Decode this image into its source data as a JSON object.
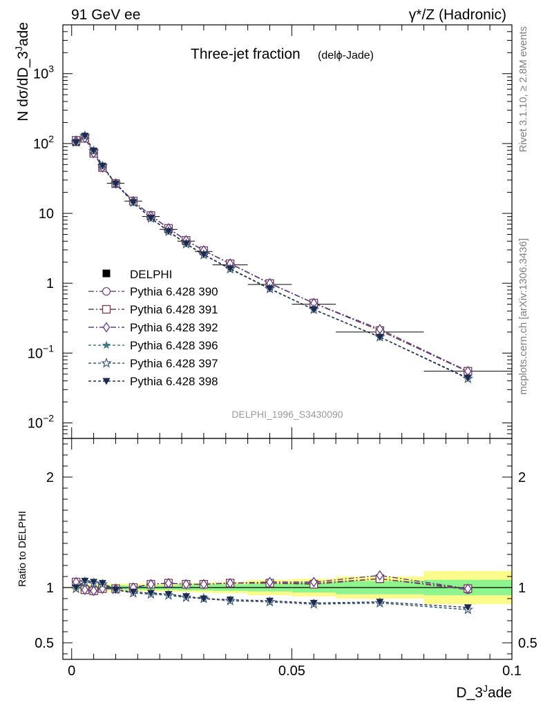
{
  "header": {
    "left": "91 GeV ee",
    "right": "γ*/Z (Hadronic)"
  },
  "side_labels": {
    "rivet": "Rivet 3.1.10, ≥ 2.8M events",
    "mcplots": "mcplots.cern.ch [arXiv:1306.3436]"
  },
  "chart_data": {
    "type": "line",
    "title_main": "Three-jet fraction",
    "title_sub": "(delϕ-Jade)",
    "watermark": "DELPHI_1996_S3430090",
    "xlabel": "D_3^Jade",
    "ylabel": "N dσ/dD_3^Jade",
    "ratio_ylabel": "Ratio to DELPHI",
    "xlim": [
      -0.002,
      0.1
    ],
    "ylim_main": [
      0.006,
      5000
    ],
    "ylog_main": true,
    "ylim_ratio": [
      0.35,
      2.35
    ],
    "x_ticks": [
      {
        "value": 0,
        "label": "0"
      },
      {
        "value": 0.05,
        "label": "0.05"
      },
      {
        "value": 0.1,
        "label": "0.1"
      }
    ],
    "main_y_ticks": [
      {
        "value": 1000,
        "base": "10",
        "exp": "3"
      },
      {
        "value": 100,
        "base": "10",
        "exp": "2"
      },
      {
        "value": 10,
        "base": "10",
        "exp": ""
      },
      {
        "value": 1,
        "base": "1",
        "exp": ""
      },
      {
        "value": 0.1,
        "base": "10",
        "exp": "−1"
      },
      {
        "value": 0.01,
        "base": "10",
        "exp": "−2"
      }
    ],
    "ratio_y_ticks": [
      {
        "value": 2,
        "label": "2"
      },
      {
        "value": 1,
        "label": "1"
      },
      {
        "value": 0.5,
        "label": "0.5"
      }
    ],
    "x": [
      0.001,
      0.003,
      0.005,
      0.007,
      0.01,
      0.014,
      0.018,
      0.022,
      0.026,
      0.03,
      0.036,
      0.045,
      0.055,
      0.07,
      0.09
    ],
    "x_edges": [
      0,
      0.002,
      0.004,
      0.006,
      0.008,
      0.012,
      0.016,
      0.02,
      0.024,
      0.028,
      0.032,
      0.04,
      0.05,
      0.06,
      0.08,
      0.1
    ],
    "data": {
      "name": "DELPHI",
      "values": [
        105,
        122,
        75,
        46,
        27,
        15,
        9,
        5.9,
        4.0,
        2.85,
        1.83,
        0.96,
        0.5,
        0.2,
        0.055
      ]
    },
    "band_inner": [
      0.015,
      0.015,
      0.015,
      0.02,
      0.02,
      0.02,
      0.02,
      0.02,
      0.025,
      0.025,
      0.03,
      0.035,
      0.045,
      0.06,
      0.07,
      0.1
    ],
    "band_outer": [
      0.03,
      0.03,
      0.03,
      0.035,
      0.035,
      0.035,
      0.035,
      0.035,
      0.04,
      0.045,
      0.05,
      0.07,
      0.08,
      0.1,
      0.15,
      0.16
    ],
    "series": [
      {
        "name": "Pythia 6.428 390",
        "color": "#7a4a7a",
        "marker": "circle-open",
        "dash": "8,3,2,3",
        "values": [
          110,
          120,
          73,
          45.5,
          26.8,
          15.0,
          9.3,
          6.1,
          4.12,
          2.94,
          1.9,
          1.0,
          0.52,
          0.21,
          0.054
        ],
        "ratio": [
          1.05,
          0.98,
          0.97,
          0.99,
          0.99,
          1.0,
          1.03,
          1.04,
          1.03,
          1.03,
          1.04,
          1.04,
          1.04,
          1.08,
          0.98
        ]
      },
      {
        "name": "Pythia 6.428 391",
        "color": "#7a3b4a",
        "marker": "square-open",
        "dash": "8,3,2,3",
        "values": [
          111,
          119,
          72.5,
          45.3,
          26.7,
          15.0,
          9.3,
          6.1,
          4.1,
          2.93,
          1.9,
          0.99,
          0.52,
          0.21,
          0.055
        ],
        "ratio": [
          1.05,
          0.98,
          0.97,
          0.99,
          0.99,
          1.0,
          1.03,
          1.04,
          1.03,
          1.03,
          1.04,
          1.04,
          1.03,
          1.08,
          0.99
        ]
      },
      {
        "name": "Pythia 6.428 392",
        "color": "#5a3a8a",
        "marker": "diamond-open",
        "dash": "8,3,2,3",
        "values": [
          110,
          120,
          73,
          45.5,
          26.8,
          15.0,
          9.3,
          6.12,
          4.13,
          2.95,
          1.91,
          1.0,
          0.52,
          0.22,
          0.055
        ],
        "ratio": [
          1.05,
          0.98,
          0.97,
          0.99,
          0.99,
          1.0,
          1.03,
          1.04,
          1.03,
          1.03,
          1.04,
          1.05,
          1.05,
          1.11,
          0.99
        ]
      },
      {
        "name": "Pythia 6.428 396",
        "color": "#3d7a8a",
        "marker": "star-filled",
        "dash": "4,3",
        "values": [
          103,
          128,
          78,
          47.5,
          26.5,
          14.3,
          8.5,
          5.5,
          3.65,
          2.55,
          1.6,
          0.83,
          0.42,
          0.17,
          0.043
        ],
        "ratio": [
          0.99,
          1.05,
          1.04,
          1.03,
          0.98,
          0.95,
          0.94,
          0.93,
          0.91,
          0.9,
          0.88,
          0.87,
          0.85,
          0.86,
          0.8
        ]
      },
      {
        "name": "Pythia 6.428 397",
        "color": "#3a5a7a",
        "marker": "star-open",
        "dash": "4,3",
        "values": [
          104,
          128,
          78,
          47.5,
          26.5,
          14.3,
          8.5,
          5.5,
          3.65,
          2.55,
          1.6,
          0.83,
          0.42,
          0.17,
          0.043
        ],
        "ratio": [
          0.99,
          1.05,
          1.04,
          1.03,
          0.98,
          0.95,
          0.94,
          0.93,
          0.91,
          0.9,
          0.88,
          0.87,
          0.85,
          0.86,
          0.8
        ]
      },
      {
        "name": "Pythia 6.428 398",
        "color": "#1e2a50",
        "marker": "triangle-down-filled",
        "dash": "4,3",
        "values": [
          104,
          129,
          79,
          48,
          26.6,
          14.4,
          8.6,
          5.55,
          3.7,
          2.58,
          1.62,
          0.84,
          0.42,
          0.17,
          0.044
        ],
        "ratio": [
          1.0,
          1.06,
          1.05,
          1.04,
          0.98,
          0.96,
          0.95,
          0.94,
          0.92,
          0.9,
          0.89,
          0.88,
          0.86,
          0.87,
          0.82
        ]
      }
    ],
    "colors": {
      "band_inner": "#8ef58e",
      "band_outer": "#fbfb8c",
      "data": "#000000"
    }
  }
}
